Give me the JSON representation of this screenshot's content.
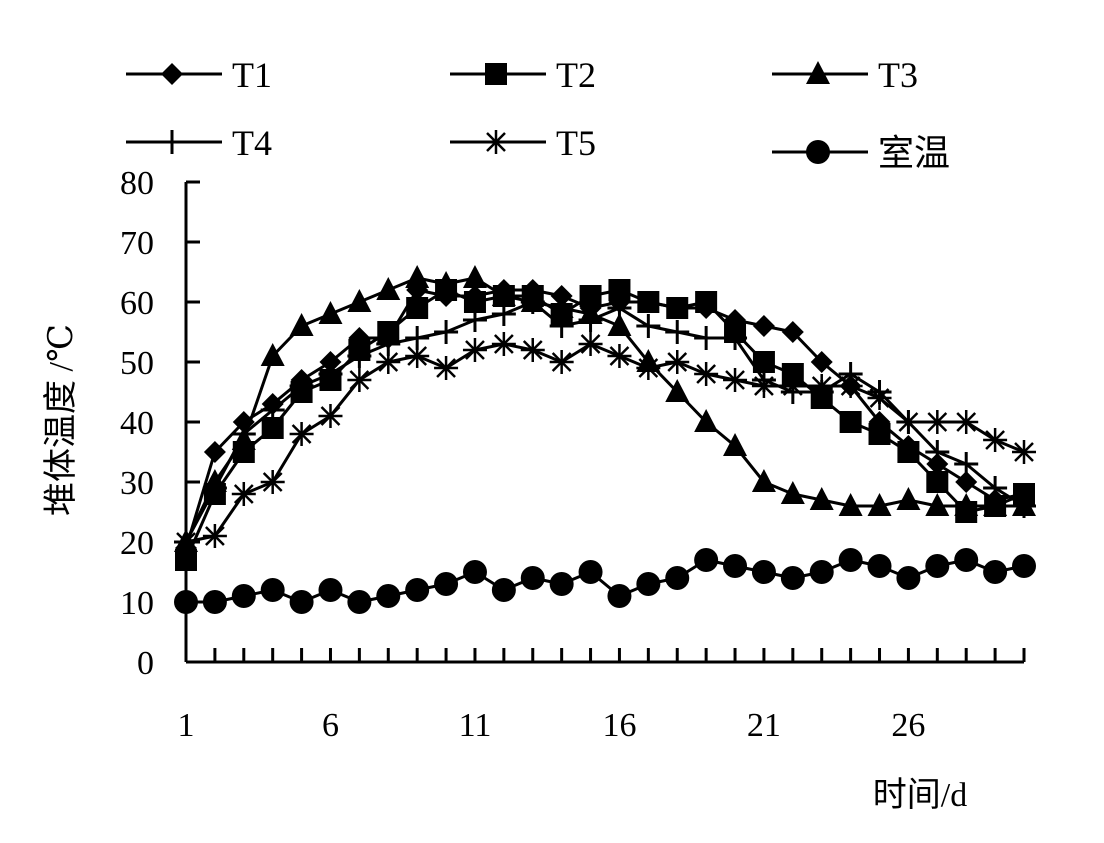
{
  "chart_data": {
    "type": "line",
    "ylabel": "堆体温度 /℃",
    "xlabel": "时间/d",
    "xlim": [
      1,
      30
    ],
    "ylim": [
      0,
      80
    ],
    "xticks": [
      1,
      6,
      11,
      16,
      21,
      26
    ],
    "yticks": [
      0,
      10,
      20,
      30,
      40,
      50,
      60,
      70,
      80
    ],
    "legend": "top",
    "grid": false,
    "series": [
      {
        "name": "T1",
        "marker": "diamond",
        "values": [
          19,
          35,
          40,
          43,
          47,
          50,
          54,
          54,
          62,
          61,
          61,
          62,
          62,
          61,
          59,
          60,
          60,
          59,
          59,
          57,
          56,
          55,
          50,
          46,
          40,
          36,
          33,
          30,
          27,
          28
        ]
      },
      {
        "name": "T2",
        "marker": "square",
        "values": [
          17,
          28,
          35,
          39,
          45,
          47,
          52,
          55,
          59,
          62,
          60,
          61,
          61,
          58,
          61,
          62,
          60,
          59,
          60,
          55,
          50,
          48,
          44,
          40,
          38,
          35,
          30,
          25,
          26,
          28
        ]
      },
      {
        "name": "T3",
        "marker": "triangle",
        "values": [
          20,
          30,
          37,
          51,
          56,
          58,
          60,
          62,
          64,
          63,
          64,
          61,
          60,
          59,
          58,
          56,
          50,
          45,
          40,
          36,
          30,
          28,
          27,
          26,
          26,
          27,
          26,
          26,
          26,
          26
        ]
      },
      {
        "name": "T4",
        "marker": "plus",
        "values": [
          20,
          29,
          38,
          42,
          46,
          48,
          51,
          53,
          54,
          55,
          57,
          58,
          60,
          56,
          57,
          59,
          56,
          55,
          54,
          54,
          47,
          45,
          45,
          48,
          45,
          40,
          35,
          33,
          29,
          26
        ]
      },
      {
        "name": "T5",
        "marker": "asterisk",
        "values": [
          20,
          21,
          28,
          30,
          38,
          41,
          47,
          50,
          51,
          49,
          52,
          53,
          52,
          50,
          53,
          51,
          49,
          50,
          48,
          47,
          46,
          46,
          46,
          46,
          44,
          40,
          40,
          40,
          37,
          35
        ]
      },
      {
        "name": "室温",
        "marker": "circle",
        "values": [
          10,
          10,
          11,
          12,
          10,
          12,
          10,
          11,
          12,
          13,
          15,
          12,
          14,
          13,
          15,
          11,
          13,
          14,
          17,
          16,
          15,
          14,
          15,
          17,
          16,
          14,
          16,
          17,
          15,
          16
        ]
      }
    ]
  }
}
